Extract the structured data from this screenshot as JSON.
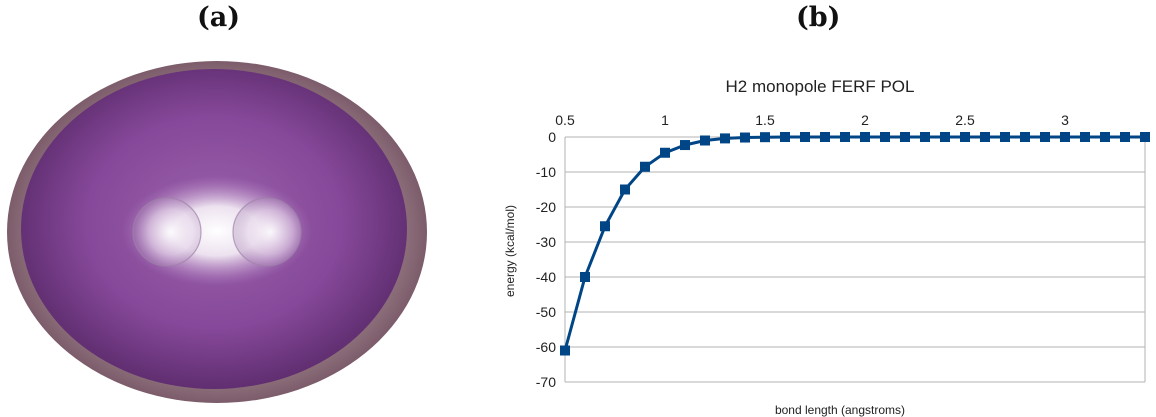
{
  "panels": {
    "a_label": "(a)",
    "b_label": "(b)"
  },
  "colors": {
    "series": "#004586",
    "grid": "#b3b3b3",
    "axis": "#b3b3b3",
    "cavity_outer": "#9c7a86",
    "cavity_inner": "#8a4c96",
    "molecule_core": "#ffffff"
  },
  "chart_data": {
    "type": "line",
    "title": "H2 monopole FERF POL",
    "xlabel": "bond length (angstroms)",
    "ylabel": "energy (kcal/mol)",
    "xlim": [
      0.5,
      3.4
    ],
    "ylim": [
      -70,
      0
    ],
    "x_ticks": [
      0.5,
      1,
      1.5,
      2,
      2.5,
      3
    ],
    "x_tick_labels": [
      "0.5",
      "1",
      "1.5",
      "2",
      "2.5",
      "3"
    ],
    "y_ticks": [
      0,
      -10,
      -20,
      -30,
      -40,
      -50,
      -60,
      -70
    ],
    "y_tick_labels": [
      "0",
      "-10",
      "-20",
      "-30",
      "-40",
      "-50",
      "-60",
      "-70"
    ],
    "x_axis_position": "top",
    "grid": true,
    "marker": "square",
    "series": [
      {
        "x": [
          0.5,
          0.6,
          0.7,
          0.8,
          0.9,
          1.0,
          1.1,
          1.2,
          1.3,
          1.4,
          1.5,
          1.6,
          1.7,
          1.8,
          1.9,
          2.0,
          2.1,
          2.2,
          2.3,
          2.4,
          2.5,
          2.6,
          2.7,
          2.8,
          2.9,
          3.0,
          3.1,
          3.2,
          3.3,
          3.4
        ],
        "y": [
          -61,
          -40,
          -25.5,
          -15,
          -8.5,
          -4.5,
          -2.3,
          -1.0,
          -0.4,
          -0.15,
          -0.05,
          0,
          0,
          0,
          0,
          0,
          0,
          0,
          0,
          0,
          0,
          0,
          0,
          0,
          0,
          0,
          0,
          0,
          0,
          0
        ]
      }
    ]
  }
}
